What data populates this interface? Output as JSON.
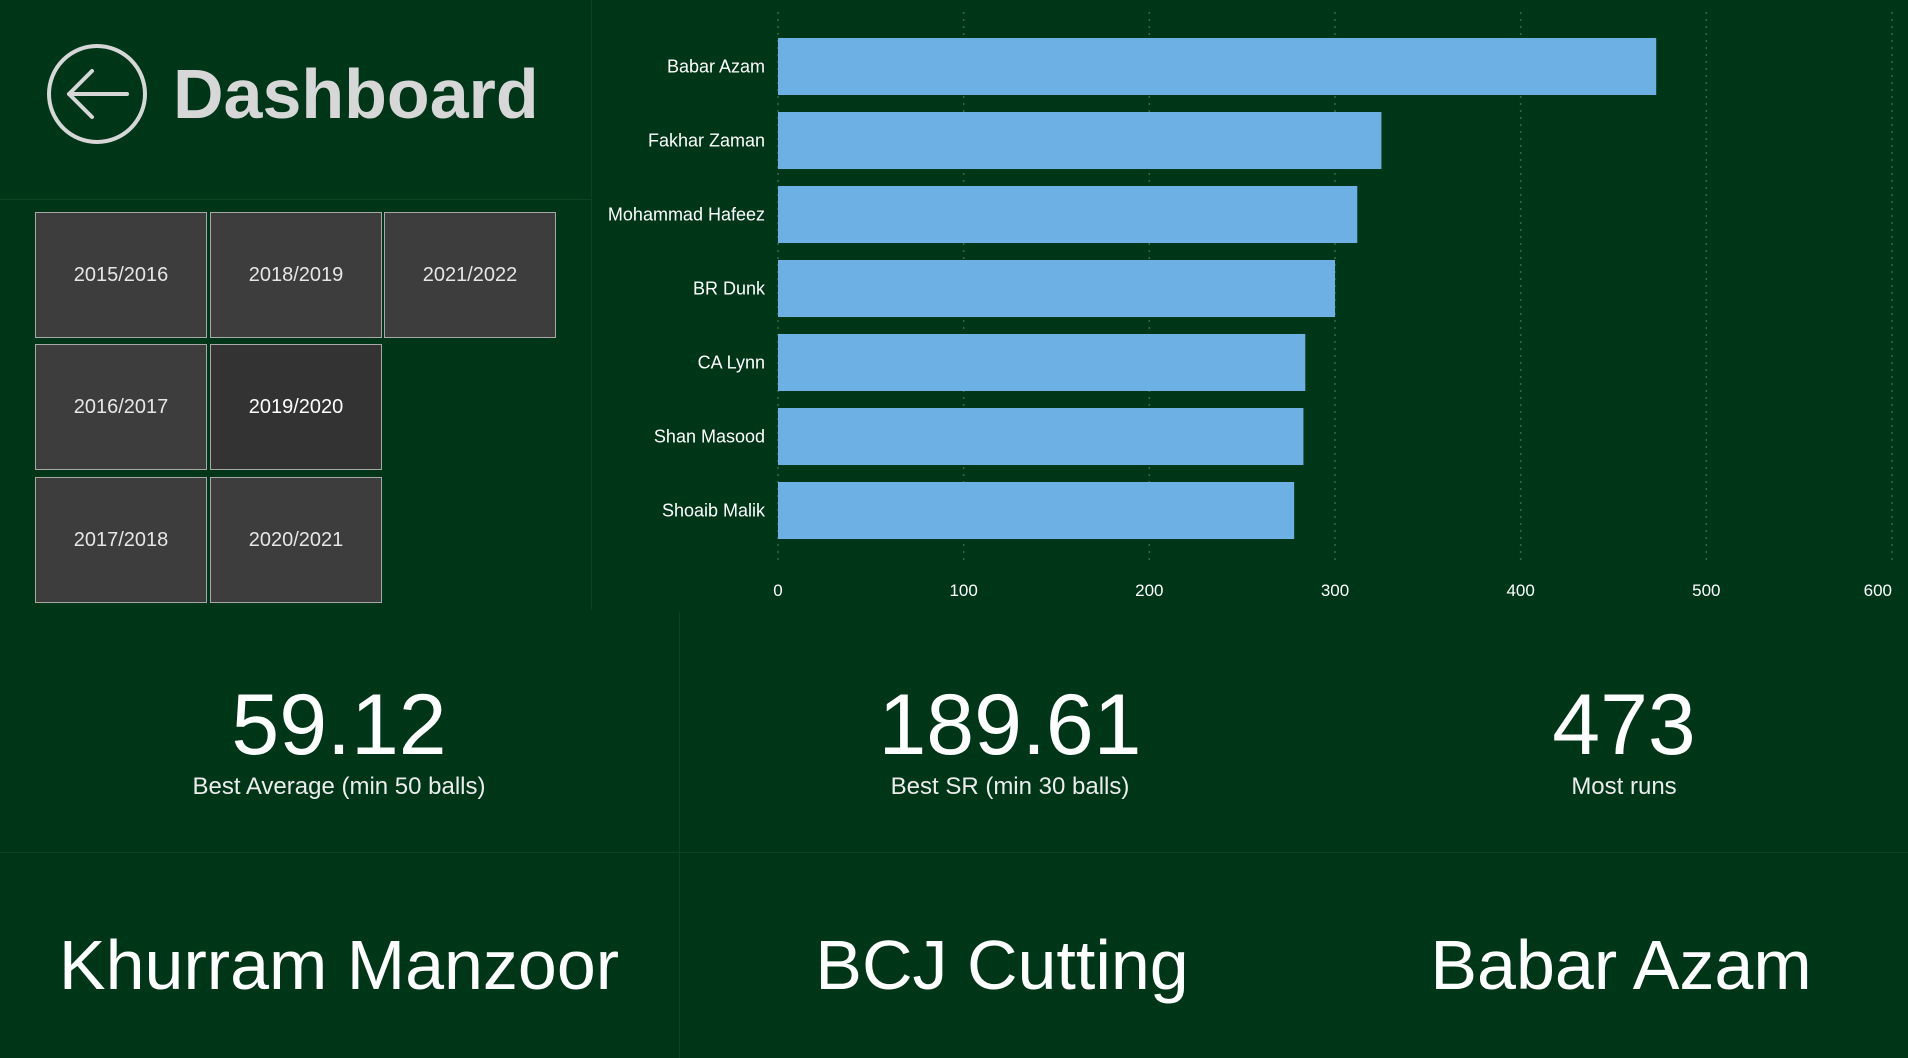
{
  "header": {
    "title": "Dashboard",
    "back_icon": "back-arrow-icon"
  },
  "season_slicer": {
    "options": [
      "2015/2016",
      "2018/2019",
      "2021/2022",
      "2016/2017",
      "2019/2020",
      "2017/2018",
      "2020/2021"
    ],
    "selected": "2019/2020"
  },
  "chart_data": {
    "type": "bar",
    "orientation": "horizontal",
    "categories": [
      "Babar Azam",
      "Fakhar Zaman",
      "Mohammad Hafeez",
      "BR Dunk",
      "CA Lynn",
      "Shan Masood",
      "Shoaib Malik"
    ],
    "values": [
      473,
      325,
      312,
      300,
      284,
      283,
      278
    ],
    "xlim": [
      0,
      600
    ],
    "xticks": [
      "0",
      "100",
      "200",
      "300",
      "400",
      "500",
      "600"
    ],
    "grid": "vertical dotted",
    "title": "",
    "xlabel": "",
    "ylabel": "",
    "bar_color": "#6cb0e4"
  },
  "kpis": [
    {
      "value": "59.12",
      "label": "Best Average (min 50 balls)"
    },
    {
      "value": "189.61",
      "label": "Best SR (min 30 balls)"
    },
    {
      "value": "473",
      "label": "Most runs"
    }
  ],
  "players": [
    "Khurram Manzoor",
    "BCJ Cutting",
    "Babar Azam"
  ],
  "colors": {
    "background": "#003618",
    "tile": "#3d3d3d",
    "bar": "#6cb0e4"
  }
}
